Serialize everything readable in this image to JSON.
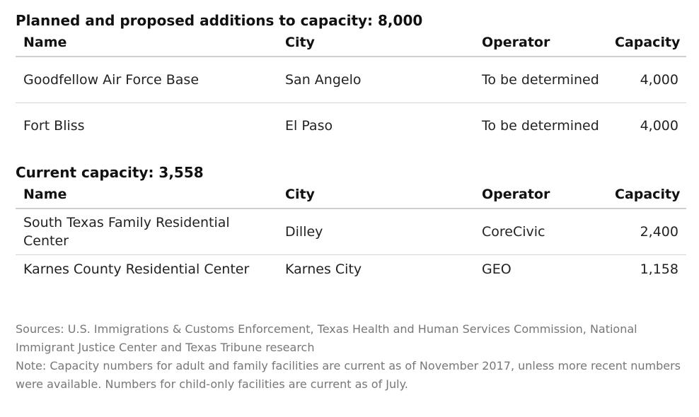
{
  "planned": {
    "title": "Planned and proposed additions to capacity: 8,000",
    "headers": {
      "name": "Name",
      "city": "City",
      "operator": "Operator",
      "capacity": "Capacity"
    },
    "rows": [
      {
        "name": "Goodfellow Air Force Base",
        "city": "San Angelo",
        "operator": "To be determined",
        "capacity": "4,000"
      },
      {
        "name": "Fort Bliss",
        "city": "El Paso",
        "operator": "To be determined",
        "capacity": "4,000"
      }
    ]
  },
  "current": {
    "title": "Current capacity: 3,558",
    "headers": {
      "name": "Name",
      "city": "City",
      "operator": "Operator",
      "capacity": "Capacity"
    },
    "rows": [
      {
        "name": "South Texas Family Residential Center",
        "city": "Dilley",
        "operator": "CoreCivic",
        "capacity": "2,400"
      },
      {
        "name": "Karnes County Residential Center",
        "city": "Karnes City",
        "operator": "GEO",
        "capacity": "1,158"
      }
    ]
  },
  "footer": {
    "sources": "Sources: U.S. Immigrations & Customs Enforcement, Texas Health and Human Services Commission, National Immigrant Justice Center and Texas Tribune research",
    "note": "Note: Capacity numbers for adult and family facilities are current as of November 2017, unless more recent numbers were available. Numbers for child-only facilities are current as of July."
  }
}
